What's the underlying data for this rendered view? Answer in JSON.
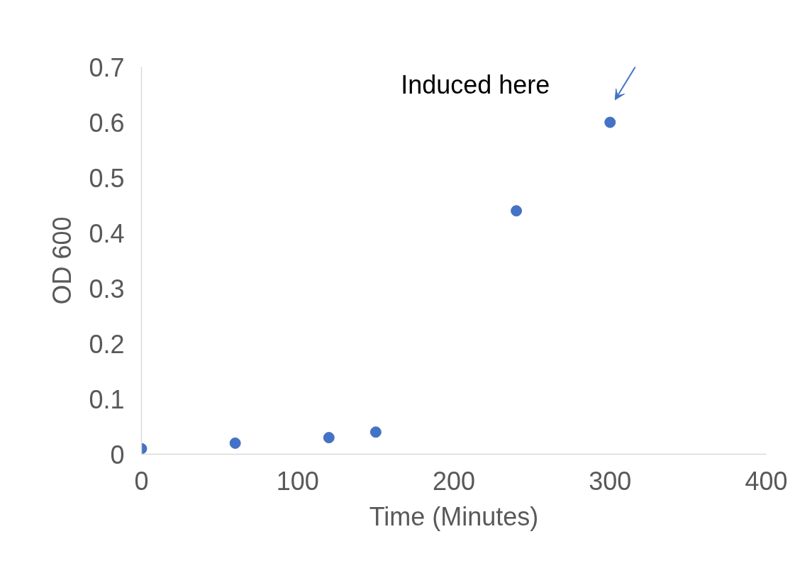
{
  "chart_data": {
    "type": "scatter",
    "xlabel": "Time (Minutes)",
    "ylabel": "OD 600",
    "x": [
      0,
      60,
      120,
      150,
      240,
      300
    ],
    "series": [
      {
        "color": "#4472c4",
        "values": [
          0.01,
          0.02,
          0.03,
          0.04,
          0.44,
          0.6
        ]
      }
    ],
    "xlim": [
      0,
      400
    ],
    "xticks": [
      0,
      100,
      200,
      300,
      400
    ],
    "ylim": [
      0,
      0.7
    ],
    "yticks": [
      0,
      0.1,
      0.2,
      0.3,
      0.4,
      0.5,
      0.6,
      0.7
    ],
    "grid": false,
    "marker": "circle",
    "annotations": [
      {
        "text": "Induced here",
        "x": 300,
        "y": 0.6
      }
    ]
  }
}
